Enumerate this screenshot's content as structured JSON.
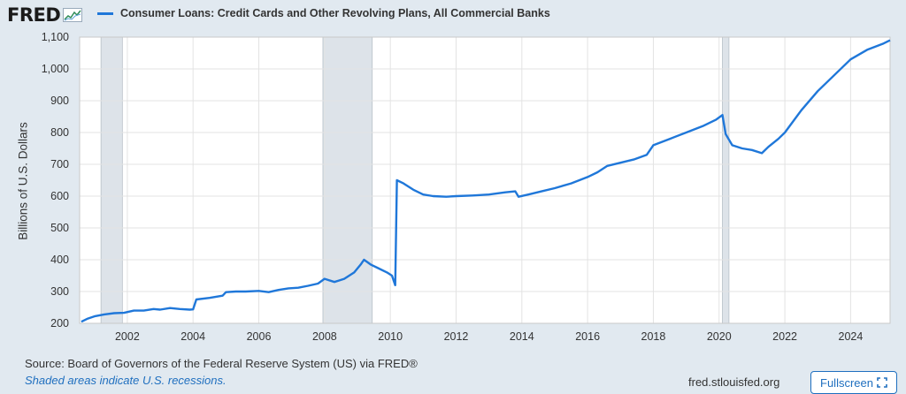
{
  "header": {
    "logo_text": "FRED",
    "legend_label": "Consumer Loans: Credit Cards and Other Revolving Plans, All Commercial Banks"
  },
  "colors": {
    "series": "#1f77d9",
    "recession": "#dde3e9",
    "background": "#e1e9f0",
    "plot": "#ffffff"
  },
  "footer": {
    "source": "Source: Board of Governors of the Federal Reserve System (US) via FRED®",
    "note": "Shaded areas indicate U.S. recessions.",
    "url": "fred.stlouisfed.org",
    "fullscreen_label": "Fullscreen",
    "fullscreen_icon": "fullscreen-icon"
  },
  "chart_data": {
    "type": "line",
    "title": "",
    "ylabel": "Billions of U.S. Dollars",
    "xlabel": "",
    "xlim": [
      2000.55,
      2025.2
    ],
    "ylim": [
      200,
      1100
    ],
    "x_ticks": [
      "2002",
      "2004",
      "2006",
      "2008",
      "2010",
      "2012",
      "2014",
      "2016",
      "2018",
      "2020",
      "2022",
      "2024"
    ],
    "x_tick_values": [
      2002,
      2004,
      2006,
      2008,
      2010,
      2012,
      2014,
      2016,
      2018,
      2020,
      2022,
      2024
    ],
    "y_ticks": [
      "200",
      "300",
      "400",
      "500",
      "600",
      "700",
      "800",
      "900",
      "1,000",
      "1,100"
    ],
    "y_tick_values": [
      200,
      300,
      400,
      500,
      600,
      700,
      800,
      900,
      1000,
      1100
    ],
    "grid": true,
    "recessions": [
      [
        2001.2,
        2001.85
      ],
      [
        2007.95,
        2009.45
      ],
      [
        2020.1,
        2020.3
      ]
    ],
    "series": [
      {
        "name": "Consumer Loans: Credit Cards and Other Revolving Plans, All Commercial Banks",
        "x": [
          2000.6,
          2000.8,
          2001.0,
          2001.3,
          2001.6,
          2001.9,
          2002.2,
          2002.5,
          2002.8,
          2003.0,
          2003.3,
          2003.6,
          2003.9,
          2004.0,
          2004.1,
          2004.5,
          2004.9,
          2005.0,
          2005.3,
          2005.6,
          2006.0,
          2006.3,
          2006.6,
          2006.9,
          2007.2,
          2007.5,
          2007.8,
          2008.0,
          2008.3,
          2008.6,
          2008.9,
          2009.1,
          2009.2,
          2009.4,
          2009.6,
          2009.9,
          2010.05,
          2010.15,
          2010.2,
          2010.4,
          2010.7,
          2011.0,
          2011.3,
          2011.7,
          2012.0,
          2012.5,
          2013.0,
          2013.5,
          2013.8,
          2013.9,
          2014.2,
          2014.6,
          2015.0,
          2015.5,
          2016.0,
          2016.3,
          2016.6,
          2017.0,
          2017.4,
          2017.8,
          2018.0,
          2018.5,
          2019.0,
          2019.5,
          2019.9,
          2020.1,
          2020.2,
          2020.4,
          2020.7,
          2021.0,
          2021.3,
          2021.5,
          2021.8,
          2022.0,
          2022.5,
          2023.0,
          2023.5,
          2024.0,
          2024.5,
          2025.0,
          2025.2
        ],
        "values": [
          205,
          215,
          222,
          228,
          232,
          233,
          240,
          240,
          245,
          243,
          248,
          245,
          243,
          244,
          275,
          280,
          287,
          298,
          300,
          300,
          302,
          298,
          305,
          310,
          312,
          318,
          325,
          340,
          330,
          340,
          360,
          385,
          400,
          385,
          375,
          360,
          350,
          320,
          650,
          640,
          620,
          605,
          600,
          598,
          600,
          602,
          605,
          612,
          615,
          598,
          605,
          615,
          625,
          640,
          660,
          675,
          695,
          705,
          715,
          730,
          760,
          780,
          800,
          820,
          840,
          855,
          795,
          760,
          750,
          745,
          735,
          755,
          780,
          800,
          870,
          930,
          980,
          1030,
          1060,
          1080,
          1090
        ]
      }
    ]
  }
}
